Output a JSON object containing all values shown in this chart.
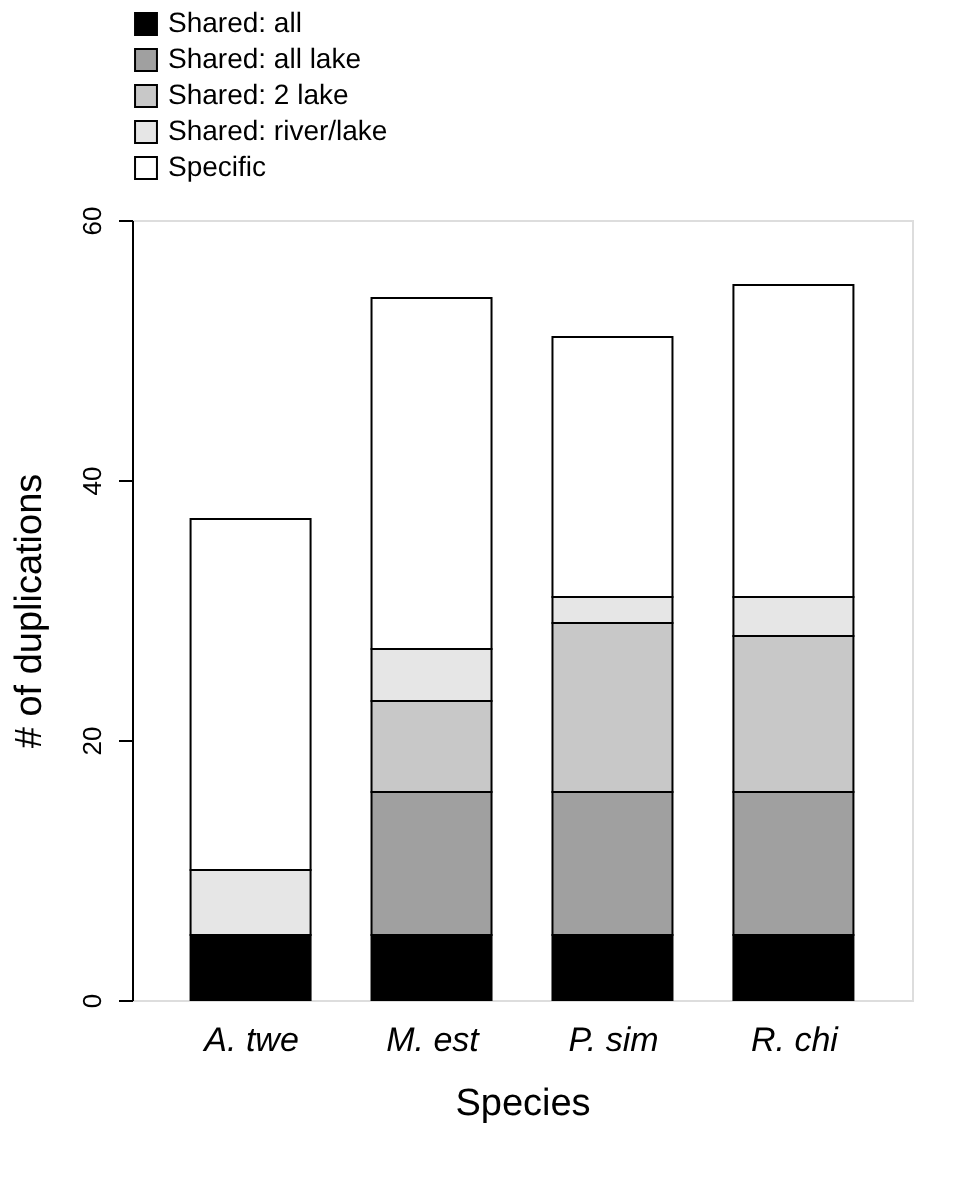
{
  "chart_data": {
    "type": "bar",
    "stacked": true,
    "xlabel": "Species",
    "ylabel": "# of duplications",
    "categories": [
      "A. twe",
      "M. est",
      "P. sim",
      "R. chi"
    ],
    "series": [
      {
        "name": "Shared: all",
        "color": "#000000",
        "values": [
          5,
          5,
          5,
          5
        ]
      },
      {
        "name": "Shared: all lake",
        "color": "#a0a0a0",
        "values": [
          0,
          11,
          11,
          11
        ]
      },
      {
        "name": "Shared: 2 lake",
        "color": "#c8c8c8",
        "values": [
          0,
          7,
          13,
          12
        ]
      },
      {
        "name": "Shared: river/lake",
        "color": "#e6e6e6",
        "values": [
          5,
          4,
          2,
          3
        ]
      },
      {
        "name": "Specific",
        "color": "#ffffff",
        "values": [
          27,
          27,
          20,
          24
        ]
      }
    ],
    "ylim": [
      0,
      60
    ],
    "yticks": [
      0,
      20,
      40,
      60
    ],
    "grid": false,
    "legend": "top left"
  }
}
